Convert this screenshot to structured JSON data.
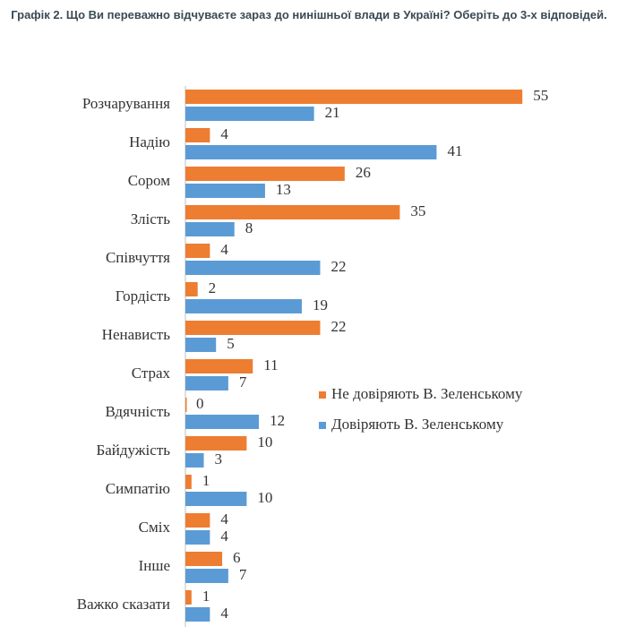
{
  "chart_data": {
    "type": "barh",
    "title": "Графік 2. Що Ви переважно відчуваєте зараз до нинішньої влади в Україні? Оберіть до 3-х відповідей.",
    "categories": [
      "Розчарування",
      "Надію",
      "Сором",
      "Злість",
      "Співчуття",
      "Гордість",
      "Ненависть",
      "Страх",
      "Вдячність",
      "Байдужість",
      "Симпатію",
      "Сміх",
      "Інше",
      "Важко сказати"
    ],
    "series": [
      {
        "name": "Не довіряють В. Зеленському",
        "color": "#ed7d31",
        "values": [
          55,
          4,
          26,
          35,
          4,
          2,
          22,
          11,
          0,
          10,
          1,
          4,
          6,
          1
        ]
      },
      {
        "name": "Довіряють В. Зеленському",
        "color": "#5b9bd5",
        "values": [
          21,
          41,
          13,
          8,
          22,
          19,
          5,
          7,
          12,
          3,
          10,
          4,
          7,
          4
        ]
      }
    ]
  }
}
